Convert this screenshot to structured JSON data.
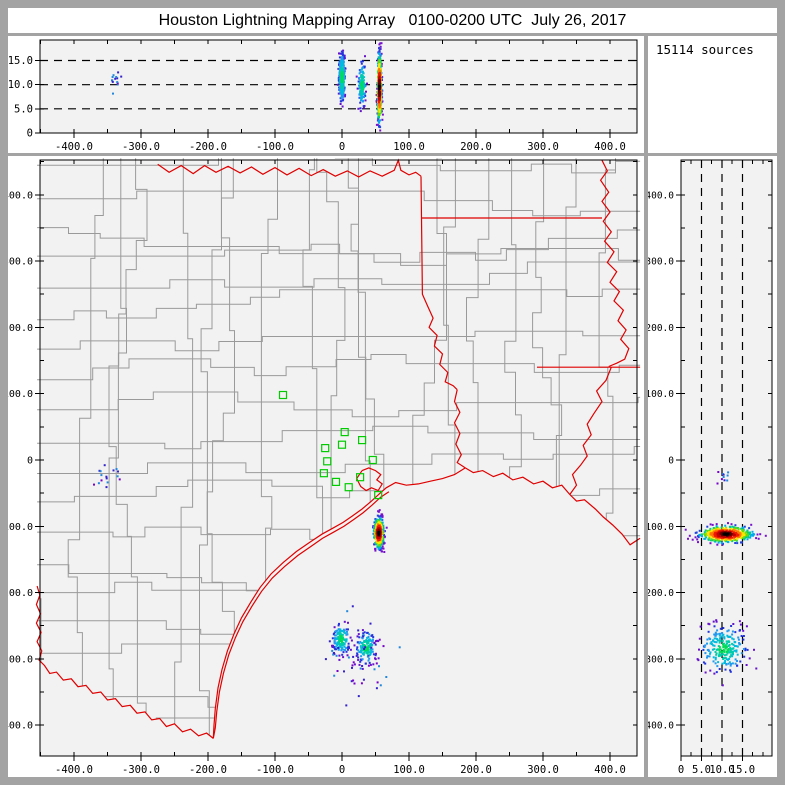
{
  "title": "Houston Lightning Mapping Array   0100-0200 UTC  July 26, 2017",
  "sources_box": {
    "label": "15114 sources"
  },
  "palette": {
    "frame_bg": "#a3a3a3",
    "panel_bg": "#ffffff",
    "plot_bg": "#f2f2f2",
    "county_line": "#9a9a9a",
    "state_line": "#e00000",
    "station_color": "#00cc00",
    "axis_color": "#000000",
    "hot": [
      "#000000",
      "#5a0000",
      "#c00000",
      "#f01800",
      "#ff7700",
      "#ffe400",
      "#66dd00",
      "#00cc88",
      "#00aaee",
      "#2244dd",
      "#7711cc"
    ],
    "cool": [
      "#00dd55",
      "#00ccaa",
      "#00bbdd",
      "#2299ee",
      "#2233dd",
      "#6611cc"
    ],
    "sparse": [
      "#7700cc",
      "#3322cc",
      "#2288dd"
    ]
  },
  "chart_data": [
    {
      "type": "scatter",
      "panel": "altitude_vs_east_west",
      "xlim": [
        -450.7,
        440.3
      ],
      "ylim": [
        0,
        19.24
      ],
      "xticks": {
        "vals": [
          -400,
          -300,
          -200,
          -100,
          0,
          100,
          200,
          300,
          400
        ],
        "labels": [
          "-400.0",
          "-300.0",
          "-200.0",
          "-100.0",
          "0",
          "100.0",
          "200.0",
          "300.0",
          "400.0"
        ]
      },
      "yticks": {
        "vals": [
          15,
          10,
          5,
          0
        ],
        "labels": [
          "15.0",
          "10.0",
          "5.0",
          "0"
        ]
      },
      "grid_dashes": [
        5,
        10,
        15
      ],
      "clusters": [
        {
          "id": "cell-a",
          "x": 0,
          "y": 11.5,
          "sx": 2.2,
          "sy": 2.6,
          "n": 320,
          "style": "cool",
          "seed": 21
        },
        {
          "id": "cell-b",
          "x": 30,
          "y": 10,
          "sx": 2.6,
          "sy": 2.4,
          "n": 130,
          "style": "cool",
          "seed": 22
        },
        {
          "id": "cell-main",
          "x": 56,
          "y": 9.3,
          "sx": 1.5,
          "sy": 3.4,
          "n": 440,
          "style": "hot",
          "seed": 23
        },
        {
          "id": "cell-west",
          "x": -340,
          "y": 10.8,
          "sx": 4,
          "sy": 1.3,
          "n": 14,
          "style": "sparse",
          "seed": 24
        }
      ]
    },
    {
      "type": "scatter",
      "panel": "plan_view_map",
      "xlim": [
        -450.7,
        440.3
      ],
      "ylim": [
        -446.5,
        452.5
      ],
      "xticks": {
        "vals": [
          -400,
          -300,
          -200,
          -100,
          0,
          100,
          200,
          300,
          400
        ],
        "labels": [
          "-400.0",
          "-300.0",
          "-200.0",
          "-100.0",
          "0",
          "100.0",
          "200.0",
          "300.0",
          "400.0"
        ]
      },
      "yticks": {
        "vals": [
          400,
          300,
          200,
          100,
          0,
          -100,
          -200,
          -300,
          -400
        ],
        "labels": [
          "400.0",
          "300.0",
          "200.0",
          "100.0",
          "0",
          "-100.0",
          "-200.0",
          "-300.0",
          "-400.0"
        ]
      },
      "stations": [
        [
          -88,
          98
        ],
        [
          4,
          42
        ],
        [
          30,
          30
        ],
        [
          0,
          23
        ],
        [
          -25,
          18
        ],
        [
          -22,
          -2
        ],
        [
          46,
          0
        ],
        [
          -27,
          -20
        ],
        [
          27,
          -26
        ],
        [
          -9,
          -33
        ],
        [
          10,
          -41
        ],
        [
          54,
          -53
        ]
      ],
      "clusters": [
        {
          "id": "galveston-storm",
          "x": 55,
          "y": -110,
          "sx": 3.5,
          "sy": 11,
          "n": 420,
          "style": "hot",
          "seed": 11
        },
        {
          "id": "offshore-west",
          "x": -1,
          "y": -270,
          "sx": 6,
          "sy": 11,
          "n": 150,
          "style": "cool",
          "seed": 12
        },
        {
          "id": "offshore-east",
          "x": 36,
          "y": -283,
          "sx": 7,
          "sy": 12,
          "n": 160,
          "style": "cool",
          "seed": 13
        },
        {
          "id": "offshore-sparse",
          "x": 25,
          "y": -300,
          "sx": 28,
          "sy": 26,
          "n": 48,
          "style": "sparse",
          "seed": 14
        },
        {
          "id": "west-dots",
          "x": -352,
          "y": -27,
          "sx": 13,
          "sy": 8,
          "n": 16,
          "style": "sparse",
          "seed": 15
        }
      ]
    },
    {
      "type": "scatter",
      "panel": "altitude_vs_north_south",
      "xlim": [
        0,
        22.2
      ],
      "ylim": [
        -446.5,
        452.5
      ],
      "xticks": {
        "vals": [
          0,
          5,
          10,
          15
        ],
        "labels": [
          "0",
          "5.0",
          "10.0",
          "15.0"
        ]
      },
      "yticks": {
        "vals": [
          400,
          300,
          200,
          100,
          0,
          -100,
          -200,
          -300,
          -400
        ],
        "labels": [
          "400.0",
          "300.0",
          "200.0",
          "100.0",
          "0",
          "-100.0",
          "-200.0",
          "-300.0",
          "-400.0"
        ]
      },
      "grid_dashes": [
        5,
        10,
        15
      ],
      "clusters": [
        {
          "id": "storm",
          "x": 11,
          "y": -112,
          "sx": 3.1,
          "sy": 6,
          "n": 500,
          "style": "hot",
          "seed": 31
        },
        {
          "id": "offshore",
          "x": 10.5,
          "y": -285,
          "sx": 2.7,
          "sy": 17,
          "n": 230,
          "style": "cool",
          "seed": 32
        },
        {
          "id": "west",
          "x": 10.5,
          "y": -27,
          "sx": 1.6,
          "sy": 5,
          "n": 10,
          "style": "sparse",
          "seed": 33
        }
      ]
    }
  ],
  "map": {
    "counties": {
      "spacing": 46,
      "jitter": 12,
      "seed": 7
    },
    "clip_from": [
      "la_coast",
      "tx_coast",
      "rio_grande"
    ],
    "red_lines": [
      {
        "name": "red_river",
        "pts": [
          [
            -275,
            446
          ],
          [
            -258,
            434
          ],
          [
            -240,
            444
          ],
          [
            -222,
            432
          ],
          [
            -205,
            444
          ],
          [
            -188,
            434
          ],
          [
            -170,
            443
          ],
          [
            -152,
            433
          ],
          [
            -135,
            442
          ],
          [
            -118,
            431
          ],
          [
            -100,
            441
          ],
          [
            -82,
            430
          ],
          [
            -64,
            440
          ],
          [
            -46,
            429
          ],
          [
            -28,
            438
          ],
          [
            -10,
            428
          ],
          [
            8,
            436
          ],
          [
            25,
            427
          ],
          [
            42,
            436
          ],
          [
            60,
            428
          ],
          [
            78,
            437
          ],
          [
            84,
            452
          ],
          [
            88,
            437
          ],
          [
            100,
            430
          ],
          [
            110,
            434
          ],
          [
            118,
            428
          ]
        ]
      },
      {
        "name": "tx_ar_border",
        "pts": [
          [
            118,
            428
          ],
          [
            119,
            340
          ],
          [
            120,
            250
          ],
          [
            128,
            232
          ],
          [
            136,
            214
          ],
          [
            130,
            200
          ],
          [
            142,
            188
          ],
          [
            138,
            172
          ],
          [
            150,
            160
          ],
          [
            146,
            144
          ],
          [
            158,
            132
          ],
          [
            154,
            118
          ],
          [
            166,
            112
          ],
          [
            172,
            106
          ]
        ]
      },
      {
        "name": "sabine",
        "pts": [
          [
            172,
            106
          ],
          [
            168,
            88
          ],
          [
            176,
            72
          ],
          [
            168,
            56
          ],
          [
            176,
            40
          ],
          [
            170,
            24
          ],
          [
            178,
            8
          ],
          [
            172,
            -4
          ],
          [
            184,
            -12
          ]
        ]
      },
      {
        "name": "state_upper",
        "pts": [
          [
            118,
            365
          ],
          [
            388,
            365
          ]
        ]
      },
      {
        "name": "state_33n",
        "pts": [
          [
            291,
            140
          ],
          [
            445,
            140
          ]
        ]
      },
      {
        "name": "mississippi_upper",
        "pts": [
          [
            388,
            452
          ],
          [
            396,
            436
          ],
          [
            386,
            422
          ],
          [
            398,
            404
          ],
          [
            388,
            390
          ],
          [
            400,
            374
          ],
          [
            390,
            360
          ],
          [
            402,
            344
          ],
          [
            392,
            330
          ],
          [
            406,
            314
          ],
          [
            396,
            298
          ],
          [
            410,
            284
          ],
          [
            400,
            268
          ],
          [
            414,
            254
          ],
          [
            406,
            240
          ],
          [
            420,
            226
          ],
          [
            412,
            210
          ],
          [
            424,
            196
          ],
          [
            416,
            182
          ],
          [
            428,
            168
          ],
          [
            422,
            152
          ],
          [
            410,
            146
          ],
          [
            398,
            141
          ]
        ]
      },
      {
        "name": "mississippi_lower",
        "pts": [
          [
            402,
            140
          ],
          [
            394,
            120
          ],
          [
            380,
            104
          ],
          [
            388,
            88
          ],
          [
            376,
            70
          ],
          [
            366,
            54
          ],
          [
            372,
            38
          ],
          [
            360,
            22
          ],
          [
            366,
            6
          ],
          [
            356,
            -8
          ],
          [
            344,
            -22
          ],
          [
            350,
            -38
          ],
          [
            340,
            -52
          ]
        ]
      },
      {
        "name": "la_coast",
        "pts": [
          [
            445,
            -118
          ],
          [
            430,
            -128
          ],
          [
            418,
            -112
          ],
          [
            404,
            -98
          ],
          [
            390,
            -86
          ],
          [
            378,
            -74
          ],
          [
            362,
            -60
          ],
          [
            350,
            -62
          ],
          [
            340,
            -52
          ],
          [
            328,
            -38
          ],
          [
            314,
            -42
          ],
          [
            300,
            -32
          ],
          [
            286,
            -36
          ],
          [
            270,
            -26
          ],
          [
            255,
            -30
          ],
          [
            240,
            -20
          ],
          [
            226,
            -25
          ],
          [
            210,
            -16
          ],
          [
            196,
            -19
          ],
          [
            184,
            -12
          ]
        ]
      },
      {
        "name": "tx_coast",
        "pts": [
          [
            184,
            -12
          ],
          [
            168,
            -22
          ],
          [
            150,
            -28
          ],
          [
            132,
            -32
          ],
          [
            114,
            -36
          ],
          [
            96,
            -38
          ],
          [
            80,
            -34
          ],
          [
            66,
            -42
          ],
          [
            57,
            -50
          ],
          [
            44,
            -62
          ],
          [
            30,
            -74
          ],
          [
            16,
            -84
          ],
          [
            2,
            -94
          ],
          [
            -14,
            -103
          ],
          [
            -30,
            -112
          ],
          [
            -48,
            -124
          ],
          [
            -68,
            -138
          ],
          [
            -88,
            -155
          ],
          [
            -106,
            -172
          ],
          [
            -122,
            -192
          ],
          [
            -136,
            -214
          ],
          [
            -150,
            -238
          ],
          [
            -161,
            -262
          ],
          [
            -171,
            -288
          ],
          [
            -179,
            -316
          ],
          [
            -185,
            -344
          ],
          [
            -189,
            -375
          ],
          [
            -191,
            -400
          ],
          [
            -192,
            -420
          ]
        ]
      },
      {
        "name": "barrier_island",
        "pts": [
          [
            70,
            -48
          ],
          [
            58,
            -56
          ],
          [
            45,
            -68
          ],
          [
            31,
            -80
          ],
          [
            17,
            -90
          ],
          [
            3,
            -100
          ],
          [
            -13,
            -109
          ],
          [
            -29,
            -118
          ],
          [
            -46,
            -130
          ],
          [
            -66,
            -144
          ],
          [
            -86,
            -161
          ],
          [
            -104,
            -178
          ],
          [
            -120,
            -198
          ],
          [
            -134,
            -220
          ],
          [
            -148,
            -244
          ],
          [
            -159,
            -268
          ],
          [
            -169,
            -294
          ],
          [
            -177,
            -322
          ],
          [
            -183,
            -350
          ],
          [
            -187,
            -380
          ],
          [
            -189,
            -404
          ],
          [
            -192,
            -420
          ]
        ]
      },
      {
        "name": "rio_grande",
        "pts": [
          [
            -192,
            -420
          ],
          [
            -202,
            -412
          ],
          [
            -214,
            -416
          ],
          [
            -226,
            -406
          ],
          [
            -238,
            -410
          ],
          [
            -250,
            -398
          ],
          [
            -262,
            -402
          ],
          [
            -272,
            -390
          ],
          [
            -284,
            -392
          ],
          [
            -294,
            -380
          ],
          [
            -306,
            -382
          ],
          [
            -316,
            -370
          ],
          [
            -328,
            -372
          ],
          [
            -338,
            -360
          ],
          [
            -350,
            -362
          ],
          [
            -360,
            -350
          ],
          [
            -372,
            -352
          ],
          [
            -382,
            -340
          ],
          [
            -394,
            -342
          ],
          [
            -404,
            -330
          ],
          [
            -416,
            -332
          ],
          [
            -426,
            -320
          ],
          [
            -436,
            -322
          ],
          [
            -444,
            -310
          ],
          [
            -452,
            -302
          ],
          [
            -448,
            -288
          ],
          [
            -455,
            -274
          ],
          [
            -449,
            -260
          ],
          [
            -456,
            -246
          ],
          [
            -450,
            -232
          ],
          [
            -456,
            -218
          ],
          [
            -451,
            -204
          ],
          [
            -455,
            -190
          ]
        ]
      },
      {
        "name": "galveston_bay",
        "pts": [
          [
            30,
            -16
          ],
          [
            40,
            -12
          ],
          [
            50,
            -16
          ],
          [
            58,
            -22
          ],
          [
            52,
            -30
          ],
          [
            60,
            -36
          ],
          [
            54,
            -46
          ],
          [
            44,
            -42
          ],
          [
            36,
            -46
          ],
          [
            28,
            -40
          ],
          [
            22,
            -28
          ],
          [
            30,
            -16
          ]
        ]
      }
    ]
  }
}
